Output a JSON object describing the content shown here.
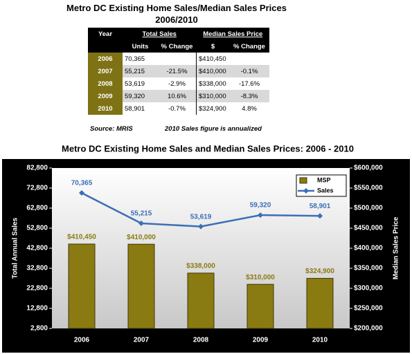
{
  "table": {
    "title": "Metro DC Existing Home Sales/Median Sales Prices",
    "subtitle": "2006/2010",
    "headers": [
      "Year",
      "Total Sales",
      "Median Sales Price"
    ],
    "subheaders": [
      "Units",
      "% Change",
      "$",
      "% Change"
    ],
    "rows": [
      {
        "year": "2006",
        "units": "70,365",
        "price": "$410,450"
      },
      {
        "year": "2007",
        "units": "55,215",
        "units_change": "-21.5%",
        "price": "$410,000",
        "price_change": "-0.1%"
      },
      {
        "year": "2008",
        "units": "53,619",
        "units_change": "-2.9%",
        "price": "$338,000",
        "price_change": "-17.6%"
      },
      {
        "year": "2009",
        "units": "59,320",
        "units_change": "10.6%",
        "price": "$310,000",
        "price_change": "-8.3%"
      },
      {
        "year": "2010",
        "units": "58,901",
        "units_change": "-0.7%",
        "price": "$324,900",
        "price_change": "4.8%"
      }
    ],
    "source": "Source:  MRIS",
    "note": "2010 Sales figure is annualized"
  },
  "chart_data": {
    "type": "bar",
    "title": "Metro DC Existing Home Sales and Median Sales Prices:  2006 - 2010",
    "categories": [
      "2006",
      "2007",
      "2008",
      "2009",
      "2010"
    ],
    "series": [
      {
        "name": "MSP",
        "type": "bar",
        "axis": "y2",
        "color": "#8a7a12",
        "values": [
          410450,
          410000,
          338000,
          310000,
          324900
        ],
        "value_labels": [
          "$410,450",
          "$410,000",
          "$338,000",
          "$310,000",
          "$324,900"
        ]
      },
      {
        "name": "Sales",
        "type": "line",
        "color": "#3b6fb6",
        "values": [
          70365,
          55215,
          53619,
          59320,
          58901
        ],
        "value_labels": [
          "70,365",
          "55,215",
          "53,619",
          "59,320",
          "58,901"
        ]
      }
    ],
    "ylabel": "Total Annual Sales",
    "y2label": "Median Sales Price",
    "ylim": [
      2800,
      82800
    ],
    "yticks": [
      {
        "value": 2800,
        "label": "2,800"
      },
      {
        "value": 12800,
        "label": "12,800"
      },
      {
        "value": 22800,
        "label": "22,800"
      },
      {
        "value": 32800,
        "label": "32,800"
      },
      {
        "value": 42800,
        "label": "42,800"
      },
      {
        "value": 52800,
        "label": "52,800"
      },
      {
        "value": 62800,
        "label": "62,800"
      },
      {
        "value": 72800,
        "label": "72,800"
      },
      {
        "value": 82800,
        "label": "82,800"
      }
    ],
    "y2lim": [
      200000,
      600000
    ],
    "y2ticks": [
      {
        "value": 200000,
        "label": "$200,000"
      },
      {
        "value": 250000,
        "label": "$250,000"
      },
      {
        "value": 300000,
        "label": "$300,000"
      },
      {
        "value": 350000,
        "label": "$350,000"
      },
      {
        "value": 400000,
        "label": "$400,000"
      },
      {
        "value": 450000,
        "label": "$450,000"
      },
      {
        "value": 500000,
        "label": "$500,000"
      },
      {
        "value": 550000,
        "label": "$550,000"
      },
      {
        "value": 600000,
        "label": "$600,000"
      }
    ],
    "legend": "top-right"
  }
}
